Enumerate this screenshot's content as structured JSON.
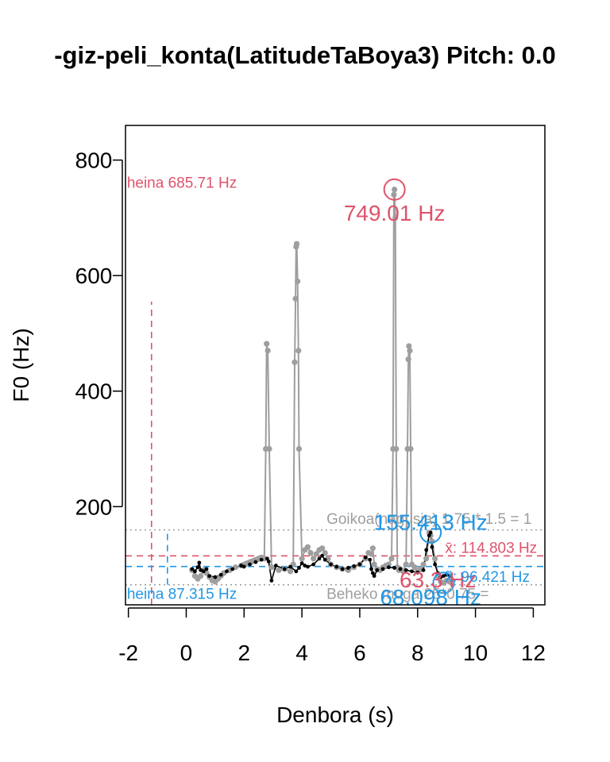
{
  "chart_data": {
    "type": "line",
    "title": "-giz-peli_konta(LatitudeTaBoya3) Pitch: 0.0",
    "xlabel": "Denbora (s)",
    "ylabel": "F0 (Hz)",
    "xlim": [
      -2.1,
      12.4
    ],
    "ylim": [
      30,
      860
    ],
    "xticks": [
      -2,
      0,
      2,
      4,
      6,
      8,
      10,
      12
    ],
    "yticks": [
      200,
      400,
      600,
      800
    ],
    "colors": {
      "red": "#DF536B",
      "blue": "#2297E6",
      "gray": "#9E9E9E",
      "black": "#000000"
    },
    "series": [
      {
        "color": "#9E9E9E",
        "x": [
          0.2,
          0.3,
          0.4,
          0.5,
          0.6,
          0.7,
          0.8,
          0.9,
          1.0,
          1.1,
          1.2,
          1.3,
          1.5,
          1.7,
          1.9,
          2.0,
          2.1,
          2.2,
          2.3,
          2.4,
          2.5,
          2.6,
          2.7,
          2.75,
          2.78,
          2.82,
          2.87,
          2.95,
          3.2,
          3.4,
          3.6,
          3.7,
          3.75,
          3.78,
          3.8,
          3.82,
          3.85,
          3.88,
          3.9,
          4.0,
          4.1,
          4.2,
          4.3,
          4.4,
          4.5,
          4.6,
          4.7,
          4.8,
          4.9,
          5.0,
          5.2,
          5.4,
          5.6,
          5.8,
          6.0,
          6.2,
          6.3,
          6.4,
          6.45,
          6.5,
          6.6,
          6.7,
          6.8,
          6.9,
          7.0,
          7.1,
          7.15,
          7.18,
          7.2,
          7.23,
          7.26,
          7.3,
          7.35,
          7.4,
          7.5,
          7.6,
          7.65,
          7.68,
          7.7,
          7.73,
          7.76,
          7.8,
          7.9,
          8.0,
          8.1,
          8.2,
          8.3,
          8.4,
          8.45,
          8.5,
          8.6,
          8.7,
          8.8,
          8.9,
          9.0,
          9.1
        ],
        "y": [
          90,
          80,
          75,
          80,
          90,
          85,
          78,
          72,
          70,
          75,
          80,
          85,
          90,
          95,
          98,
          100,
          102,
          104,
          106,
          108,
          110,
          112,
          110,
          300,
          482,
          470,
          300,
          95,
          90,
          92,
          88,
          100,
          450,
          560,
          650,
          655,
          590,
          470,
          300,
          110,
          125,
          130,
          120,
          110,
          118,
          125,
          128,
          120,
          110,
          100,
          95,
          92,
          90,
          95,
          100,
          110,
          120,
          118,
          128,
          100,
          92,
          90,
          95,
          98,
          100,
          110,
          300,
          740,
          749,
          700,
          300,
          95,
          90,
          92,
          88,
          100,
          300,
          455,
          478,
          470,
          300,
          100,
          95,
          88,
          92,
          100,
          110,
          155,
          150,
          140,
          110,
          80,
          70,
          68,
          72,
          70
        ],
        "markers": "points"
      },
      {
        "color": "#000000",
        "x": [
          0.2,
          0.3,
          0.4,
          0.45,
          0.5,
          0.6,
          0.7,
          0.8,
          1.0,
          1.2,
          1.4,
          1.6,
          1.9,
          2.0,
          2.2,
          2.4,
          2.6,
          2.8,
          2.85,
          2.95,
          3.1,
          3.4,
          3.6,
          3.8,
          3.9,
          4.0,
          4.1,
          4.2,
          4.4,
          4.6,
          4.7,
          4.8,
          5.0,
          5.2,
          5.4,
          5.6,
          5.8,
          6.0,
          6.2,
          6.35,
          6.4,
          6.45,
          6.5,
          6.6,
          6.8,
          7.0,
          7.2,
          7.4,
          7.6,
          7.8,
          8.0,
          8.2,
          8.3,
          8.4,
          8.45,
          8.5,
          8.6,
          8.7,
          8.8,
          8.9,
          9.0,
          9.1
        ],
        "y": [
          92,
          88,
          95,
          103,
          90,
          88,
          92,
          80,
          78,
          82,
          88,
          92,
          98,
          96,
          100,
          104,
          108,
          110,
          105,
          72,
          98,
          92,
          96,
          88,
          94,
          102,
          98,
          96,
          100,
          110,
          115,
          108,
          100,
          96,
          92,
          94,
          97,
          100,
          112,
          108,
          92,
          85,
          80,
          90,
          92,
          95,
          94,
          92,
          90,
          88,
          86,
          90,
          125,
          150,
          155,
          130,
          100,
          85,
          78,
          80,
          82,
          80
        ],
        "markers": "points"
      }
    ],
    "hlines": [
      {
        "y": 114.803,
        "color": "#DF536B",
        "style": "dashed"
      },
      {
        "y": 96.421,
        "color": "#2297E6",
        "style": "dashed"
      },
      {
        "y": 159.7,
        "color": "#9E9E9E",
        "style": "dotted"
      },
      {
        "y": 64.8,
        "color": "#9E9E9E",
        "style": "dotted"
      }
    ],
    "vlines": [
      {
        "x": -1.2,
        "y0": 30,
        "y1": 555,
        "color": "#DF536B",
        "style": "dashed"
      },
      {
        "x": -0.65,
        "y0": 64.8,
        "y1": 159.7,
        "color": "#2297E6",
        "style": "dashed"
      }
    ],
    "circles": [
      {
        "x": 7.2,
        "y": 749.01,
        "color": "#DF536B"
      },
      {
        "x": 8.45,
        "y": 155.413,
        "color": "#2297E6"
      },
      {
        "x": 8.9,
        "y": 68.098,
        "color": "#2297E6"
      }
    ],
    "annotations": [
      {
        "text": "heina 685.71 Hz",
        "x": -2.05,
        "y": 752,
        "color": "#DF536B",
        "size": 19,
        "anchor": "start"
      },
      {
        "text": "749.01 Hz",
        "x": 7.2,
        "y": 695,
        "color": "#DF536B",
        "size": 28,
        "anchor": "middle"
      },
      {
        "text": "Goikoa(nagusia) 1.75 * 1.5 = 1",
        "x": 4.85,
        "y": 170,
        "color": "#9E9E9E",
        "size": 19,
        "anchor": "start"
      },
      {
        "text": "155.413 Hz",
        "x": 8.45,
        "y": 160,
        "color": "#2297E6",
        "size": 28,
        "anchor": "middle"
      },
      {
        "text": "x̄: 114.803 Hz",
        "x": 8.95,
        "y": 120,
        "color": "#DF536B",
        "size": 19,
        "anchor": "start"
      },
      {
        "text": "63.3 Hz",
        "x": 8.7,
        "y": 60,
        "color": "#DF536B",
        "size": 28,
        "anchor": "middle"
      },
      {
        "text": "x̃: 96.421 Hz",
        "x": 8.95,
        "y": 70,
        "color": "#2297E6",
        "size": 19,
        "anchor": "start"
      },
      {
        "text": "heina 87.315 Hz",
        "x": -2.05,
        "y": 40,
        "color": "#2297E6",
        "size": 19,
        "anchor": "start"
      },
      {
        "text": "Beheko muga 25*0.75 =",
        "x": 4.85,
        "y": 40,
        "color": "#9E9E9E",
        "size": 19,
        "anchor": "start"
      },
      {
        "text": "68.098 Hz",
        "x": 8.45,
        "y": 30,
        "color": "#2297E6",
        "size": 28,
        "anchor": "middle"
      }
    ],
    "grid": false,
    "legend": "none"
  }
}
